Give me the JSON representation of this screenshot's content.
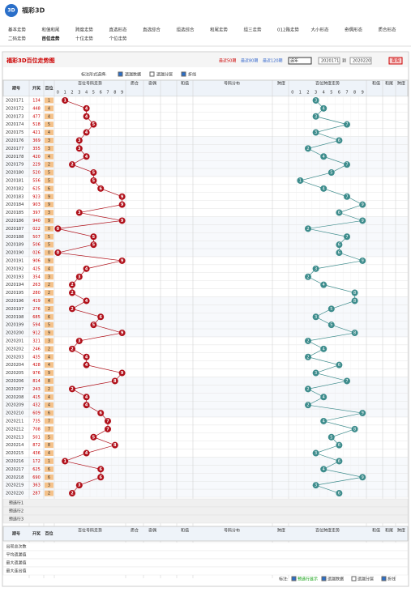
{
  "header": {
    "logo": "3D",
    "title": "福彩3D"
  },
  "nav": {
    "row1": [
      "基本走势",
      "和值和尾",
      "跨度走势",
      "直选形态",
      "直选综合",
      "组选综合",
      "和尾走势",
      "组三走势",
      "012路走势",
      "大小形态",
      "奇偶形态",
      "质合形态"
    ],
    "row2": [
      "二码走势",
      "百位走势",
      "十位走势",
      "个位走势"
    ]
  },
  "panel": {
    "title": "福彩3D百位走势图",
    "quick": [
      "最近50期",
      "最近80期",
      "最近120期"
    ],
    "select": "选年",
    "from": "2020171",
    "to_label": "到",
    "to": "2020220",
    "query": "查询"
  },
  "options": {
    "label": "标注形式选择:",
    "items": [
      "遗漏数据",
      "遗漏分层",
      "折线"
    ]
  },
  "table": {
    "columns": [
      "期号",
      "开奖",
      "百位"
    ],
    "groups": [
      "百位号码走势",
      "质合",
      "奇偶",
      "和值",
      "号码分布",
      "跨度",
      "百位跨度走势",
      "和值",
      "和尾",
      "跨度"
    ],
    "digits": [
      0,
      1,
      2,
      3,
      4,
      5,
      6,
      7,
      8,
      9
    ],
    "periods": [
      "2020171",
      "2020172",
      "2020173",
      "2020174",
      "2020175",
      "2020176",
      "2020177",
      "2020178",
      "2020179",
      "2020180",
      "2020181",
      "2020182",
      "2020183",
      "2020184",
      "2020185",
      "2020186",
      "2020187",
      "2020188",
      "2020189",
      "2020190",
      "2020191",
      "2020192",
      "2020193",
      "2020194",
      "2020195",
      "2020196",
      "2020197",
      "2020198",
      "2020199",
      "2020200",
      "2020201",
      "2020202",
      "2020203",
      "2020204",
      "2020205",
      "2020206",
      "2020207",
      "2020208",
      "2020209",
      "2020210",
      "2020211",
      "2020212",
      "2020213",
      "2020214",
      "2020215",
      "2020216",
      "2020217",
      "2020218",
      "2020219",
      "2020220"
    ],
    "numbers": [
      "134",
      "448",
      "477",
      "518",
      "421",
      "369",
      "355",
      "420",
      "229",
      "520",
      "556",
      "625",
      "923",
      "903",
      "397",
      "940",
      "022",
      "507",
      "506",
      "026",
      "906",
      "425",
      "354",
      "263",
      "280",
      "419",
      "276",
      "685",
      "594",
      "912",
      "321",
      "246",
      "435",
      "428",
      "976",
      "814",
      "243",
      "415",
      "432",
      "609",
      "735",
      "708",
      "501",
      "872",
      "436",
      "172",
      "625",
      "690",
      "363",
      "287"
    ],
    "hundreds": [
      1,
      4,
      4,
      5,
      4,
      3,
      3,
      4,
      2,
      5,
      5,
      6,
      9,
      9,
      3,
      9,
      0,
      5,
      5,
      0,
      9,
      4,
      3,
      2,
      2,
      4,
      2,
      6,
      5,
      9,
      3,
      2,
      4,
      4,
      9,
      8,
      2,
      4,
      4,
      6,
      7,
      7,
      5,
      8,
      4,
      1,
      6,
      6,
      3,
      2
    ],
    "spans": [
      3,
      4,
      3,
      7,
      3,
      6,
      2,
      4,
      7,
      5,
      1,
      4,
      7,
      9,
      6,
      9,
      2,
      7,
      6,
      6,
      9,
      3,
      2,
      4,
      8,
      8,
      5,
      3,
      5,
      8,
      2,
      4,
      2,
      6,
      3,
      7,
      2,
      4,
      2,
      9,
      4,
      8,
      5,
      6,
      3,
      6,
      4,
      9,
      3,
      6
    ],
    "preselect": [
      "预选行1",
      "预选行2",
      "预选行3"
    ],
    "stats": [
      "出现总次数",
      "平均遗漏值",
      "最大遗漏值",
      "最大连出值"
    ]
  },
  "footer": {
    "label": "标注:",
    "items": [
      "预选行显示",
      "遗漏数据",
      "遗漏分层",
      "折线"
    ]
  }
}
